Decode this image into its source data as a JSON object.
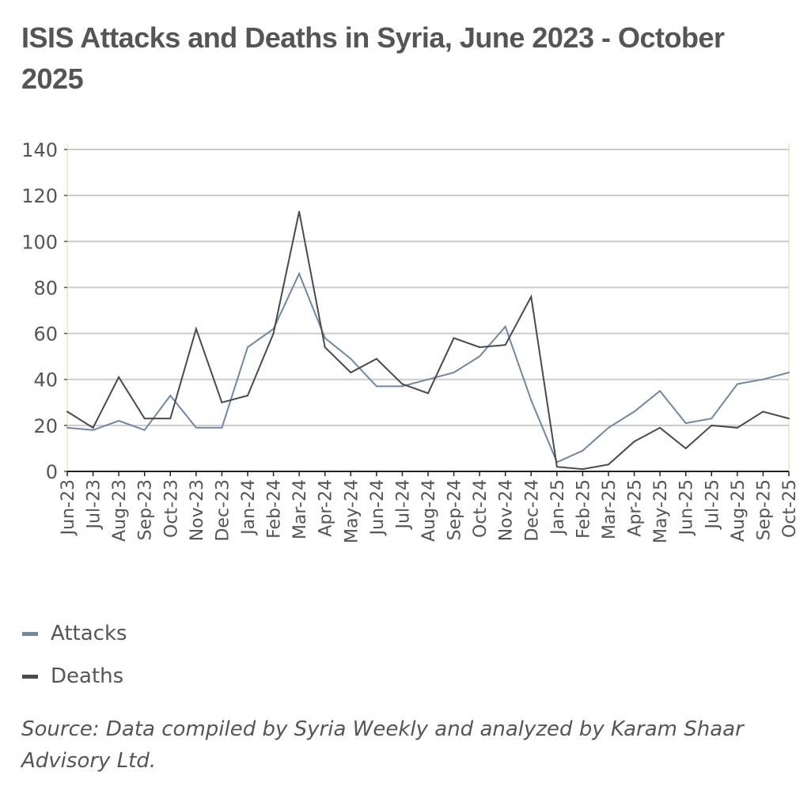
{
  "chart_data": {
    "type": "line",
    "title": "ISIS Attacks and Deaths in Syria, June 2023 - October 2025",
    "xlabel": "",
    "ylabel": "",
    "ylim": [
      0,
      140
    ],
    "yticks": [
      0,
      20,
      40,
      60,
      80,
      100,
      120,
      140
    ],
    "grid": true,
    "legend_position": "bottom-left",
    "categories": [
      "Jun-23",
      "Jul-23",
      "Aug-23",
      "Sep-23",
      "Oct-23",
      "Nov-23",
      "Dec-23",
      "Jan-24",
      "Feb-24",
      "Mar-24",
      "Apr-24",
      "May-24",
      "Jun-24",
      "Jul-24",
      "Aug-24",
      "Sep-24",
      "Oct-24",
      "Nov-24",
      "Dec-24",
      "Jan-25",
      "Feb-25",
      "Mar-25",
      "Apr-25",
      "May-25",
      "Jun-25",
      "Jul-25",
      "Aug-25",
      "Sep-25",
      "Oct-25"
    ],
    "series": [
      {
        "name": "Attacks",
        "color": "#6f87a6",
        "values": [
          19,
          18,
          22,
          18,
          33,
          19,
          19,
          54,
          62,
          86,
          58,
          49,
          37,
          37,
          40,
          43,
          50,
          63,
          31,
          4,
          9,
          19,
          26,
          35,
          21,
          23,
          38,
          40,
          43
        ]
      },
      {
        "name": "Deaths",
        "color": "#4a4a4a",
        "values": [
          26,
          19,
          41,
          23,
          23,
          62,
          30,
          33,
          60,
          113,
          54,
          43,
          49,
          38,
          34,
          58,
          54,
          55,
          76,
          2,
          1,
          3,
          13,
          19,
          10,
          20,
          19,
          26,
          23
        ]
      }
    ],
    "source": "Source: Data compiled by Syria Weekly and analyzed by Karam Shaar Advisory Ltd."
  }
}
